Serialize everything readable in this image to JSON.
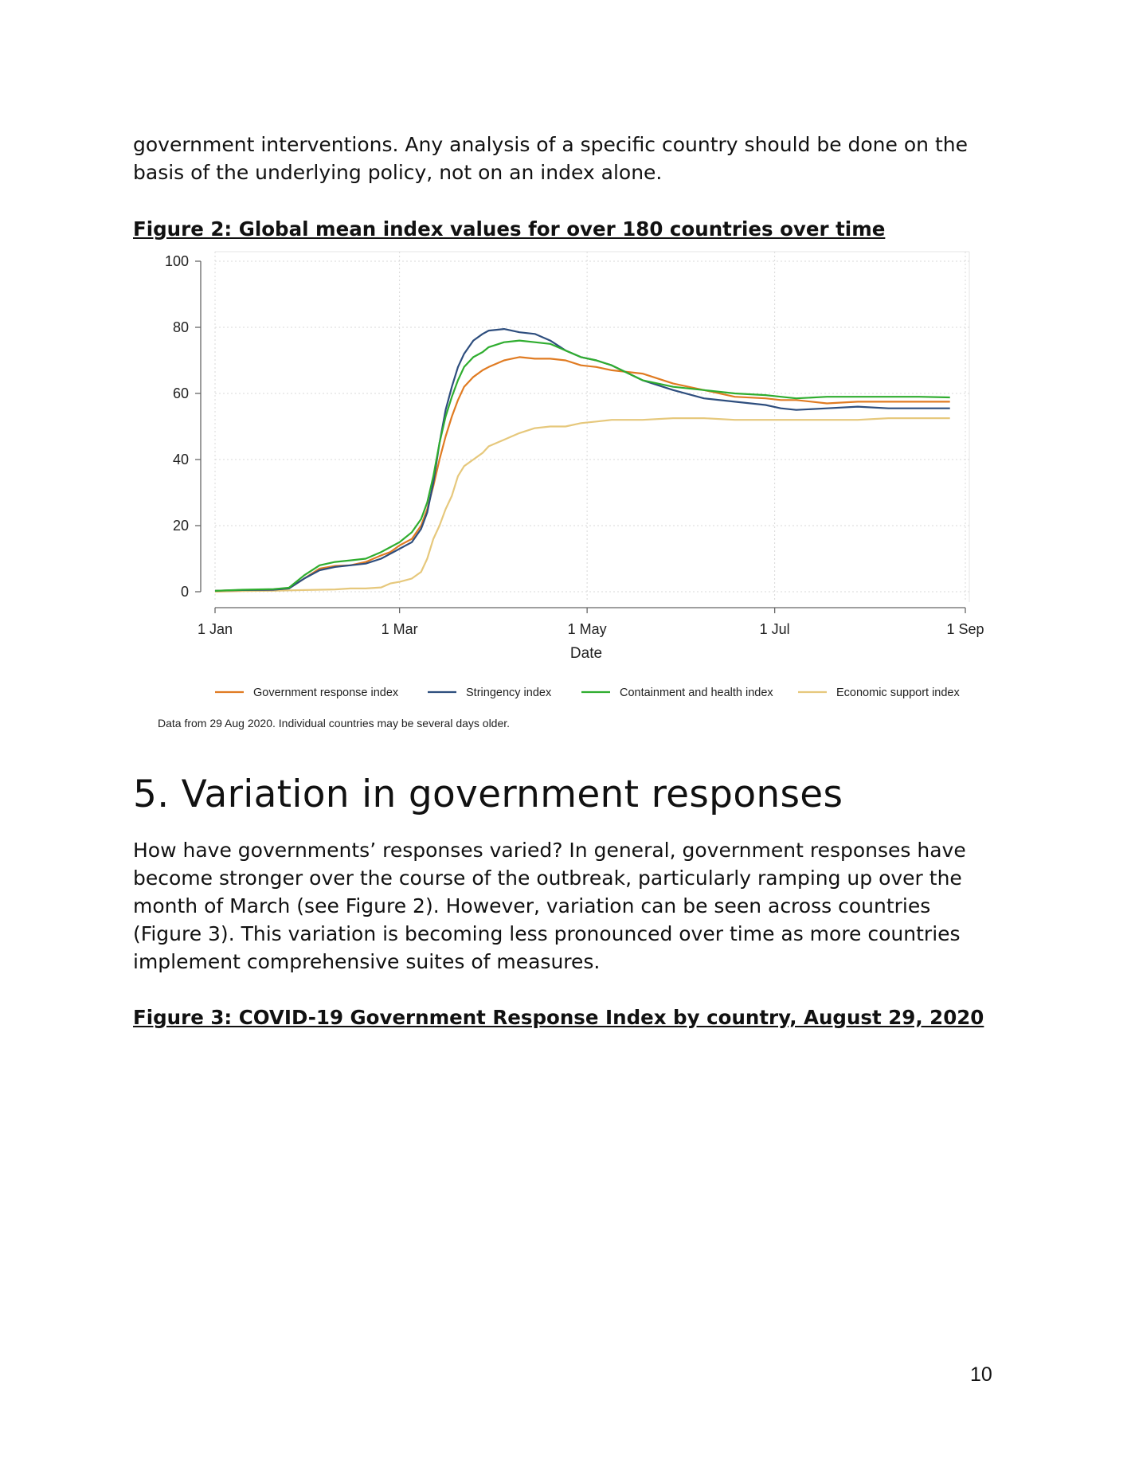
{
  "intro_paragraph": "government interventions. Any analysis of a specific country should be done on the basis of the underlying policy, not on an index alone.",
  "figure2": {
    "caption": "Figure 2: Global mean index values for over 180 countries over time",
    "note": "Data from 29 Aug 2020. Individual countries may be several days older."
  },
  "section": {
    "heading": "5. Variation in government responses",
    "paragraph": "How have governments’ responses varied? In general, government responses have become stronger over the course of the outbreak, particularly ramping up over the month of March (see Figure 2). However, variation can be seen across countries (Figure 3). This variation is becoming less pronounced over time as more countries implement comprehensive suites of measures."
  },
  "figure3": {
    "caption": "Figure 3: COVID-19 Government Response Index by country, August 29, 2020"
  },
  "page_number": "10",
  "chart_data": {
    "type": "line",
    "xlabel": "Date",
    "ylabel": "",
    "x_unit": "day of year 2020 (1 = 1 Jan)",
    "xlim": [
      1,
      245
    ],
    "ylim": [
      0,
      100
    ],
    "x_ticks": [
      {
        "day": 1,
        "label": "1 Jan"
      },
      {
        "day": 61,
        "label": "1 Mar"
      },
      {
        "day": 122,
        "label": "1 May"
      },
      {
        "day": 183,
        "label": "1 Jul"
      },
      {
        "day": 245,
        "label": "1 Sep"
      }
    ],
    "y_ticks": [
      0,
      20,
      40,
      60,
      80,
      100
    ],
    "grid": true,
    "legend_position": "bottom",
    "x": [
      1,
      10,
      20,
      25,
      30,
      35,
      40,
      45,
      50,
      55,
      58,
      61,
      65,
      68,
      70,
      72,
      74,
      76,
      78,
      80,
      82,
      85,
      88,
      90,
      95,
      100,
      105,
      110,
      115,
      120,
      125,
      130,
      140,
      150,
      160,
      170,
      180,
      185,
      190,
      200,
      210,
      220,
      230,
      240
    ],
    "series": [
      {
        "name": "Government response index",
        "color": "#e07b22",
        "values": [
          0.3,
          0.5,
          0.6,
          1,
          4,
          7,
          7.8,
          8,
          9,
          11,
          12,
          14,
          16,
          20,
          25,
          32,
          40,
          47,
          53,
          58,
          62,
          65,
          67,
          68,
          70,
          71,
          70.5,
          70.5,
          70,
          68.5,
          68,
          67,
          66,
          63,
          61,
          59,
          58.5,
          58,
          58,
          57,
          57.5,
          57.5,
          57.5,
          57.5
        ]
      },
      {
        "name": "Stringency index",
        "color": "#2e4e7e",
        "values": [
          0.3,
          0.5,
          0.6,
          1,
          4,
          6.5,
          7.5,
          8,
          8.5,
          10,
          11.5,
          13,
          15,
          19,
          24,
          33,
          45,
          55,
          62,
          68,
          72,
          76,
          78,
          79,
          79.5,
          78.5,
          78,
          76,
          73,
          71,
          70,
          68.5,
          64,
          61,
          58.5,
          57.5,
          56.5,
          55.5,
          55,
          55.5,
          56,
          55.5,
          55.5,
          55.5
        ]
      },
      {
        "name": "Containment and health index",
        "color": "#2fad2f",
        "values": [
          0.3,
          0.6,
          0.8,
          1.2,
          5,
          8,
          9,
          9.5,
          10,
          12,
          13.5,
          15,
          18,
          22,
          27,
          35,
          45,
          53,
          59,
          64,
          68,
          71,
          72.5,
          74,
          75.5,
          76,
          75.5,
          75,
          73,
          71,
          70,
          68.5,
          64,
          62,
          61,
          60,
          59.5,
          59,
          58.5,
          59,
          59,
          59,
          59,
          58.8
        ]
      },
      {
        "name": "Economic support index",
        "color": "#e6c87c",
        "values": [
          0,
          0.2,
          0.3,
          0.4,
          0.5,
          0.6,
          0.7,
          1,
          1,
          1.3,
          2.5,
          3,
          4,
          6,
          10,
          16,
          20,
          25,
          29,
          35,
          38,
          40,
          42,
          44,
          46,
          48,
          49.5,
          50,
          50,
          51,
          51.5,
          52,
          52,
          52.5,
          52.5,
          52,
          52,
          52,
          52,
          52,
          52,
          52.5,
          52.5,
          52.5
        ]
      }
    ]
  }
}
